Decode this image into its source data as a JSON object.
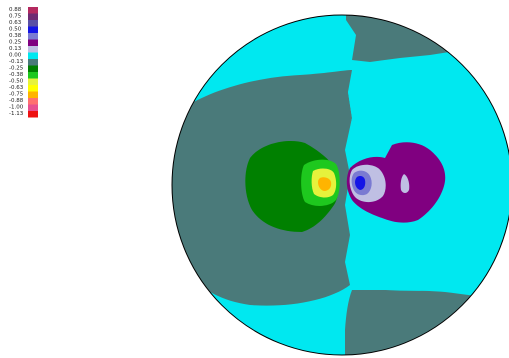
{
  "chart_data": {
    "type": "heatmap",
    "legend": {
      "placement": "top-left",
      "levels": [
        {
          "value": "0.88",
          "color": "#b4295f"
        },
        {
          "value": "0.75",
          "color": "#6e2a72"
        },
        {
          "value": "0.63",
          "color": "#5a4fa5"
        },
        {
          "value": "0.50",
          "color": "#1414e6"
        },
        {
          "value": "0.38",
          "color": "#7a7ad2"
        },
        {
          "value": "0.25",
          "color": "#800080"
        },
        {
          "value": "0.13",
          "color": "#bfbfe3"
        },
        {
          "value": "0.00",
          "color": "#00e8f0"
        },
        {
          "value": "-0.13",
          "color": "#4a7a7a"
        },
        {
          "value": "-0.25",
          "color": "#008000"
        },
        {
          "value": "-0.38",
          "color": "#1ec81e"
        },
        {
          "value": "-0.50",
          "color": "#e6f23c"
        },
        {
          "value": "-0.63",
          "color": "#ffff00"
        },
        {
          "value": "-0.75",
          "color": "#ffb400"
        },
        {
          "value": "-0.88",
          "color": "#ff7070"
        },
        {
          "value": "-1.00",
          "color": "#e85090"
        },
        {
          "value": "-1.13",
          "color": "#ee1111"
        }
      ]
    },
    "regions": [
      {
        "name": "background",
        "value": "0.00",
        "color": "#00e8f0"
      },
      {
        "name": "left-outer",
        "value": "-0.13",
        "color": "#4a7a7a"
      },
      {
        "name": "top-center",
        "value": "-0.13",
        "color": "#4a7a7a"
      },
      {
        "name": "bottom-center",
        "value": "-0.13",
        "color": "#4a7a7a"
      },
      {
        "name": "right-outer",
        "value": "0.00",
        "color": "#00e8f0"
      },
      {
        "name": "negative-core-outer",
        "value": "-0.25",
        "color": "#008000"
      },
      {
        "name": "negative-core-mid",
        "value": "-0.38",
        "color": "#1ec81e"
      },
      {
        "name": "negative-core-inner",
        "value": "-0.50",
        "color": "#e6f23c"
      },
      {
        "name": "negative-core-peak",
        "value": "-0.75",
        "color": "#ffb400"
      },
      {
        "name": "positive-core-outer",
        "value": "0.25",
        "color": "#800080"
      },
      {
        "name": "positive-core-mid",
        "value": "0.13",
        "color": "#bfbfe3"
      },
      {
        "name": "positive-core-inner",
        "value": "0.38",
        "color": "#7a7ad2"
      },
      {
        "name": "positive-core-peak",
        "value": "0.50",
        "color": "#1414e6"
      }
    ],
    "outline_color": "#000000"
  }
}
